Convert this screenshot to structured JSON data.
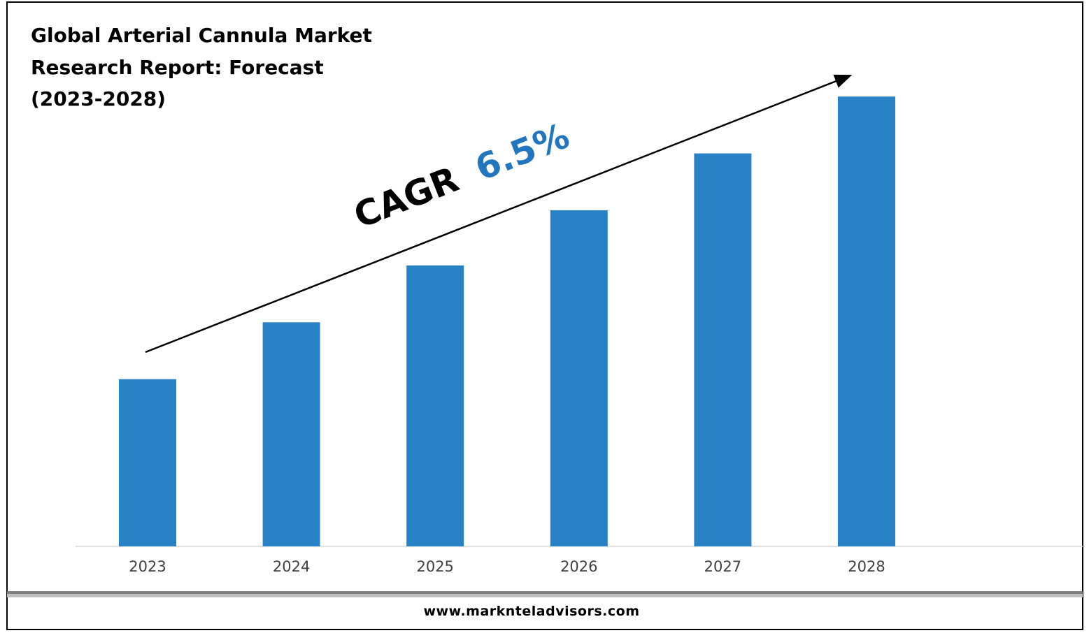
{
  "title_lines": [
    "Global Arterial Cannula Market",
    "Research Report: Forecast",
    "(2023-2028)"
  ],
  "cagr": {
    "label": "CAGR",
    "value": "6.5%"
  },
  "footer": {
    "url": "www.marknteladvisors.com"
  },
  "colors": {
    "bar": "#2982C6",
    "cagr_value": "#2276BE",
    "axis_text": "#404040"
  },
  "chart_data": {
    "type": "bar",
    "categories": [
      "2023",
      "2024",
      "2025",
      "2026",
      "2027",
      "2028"
    ],
    "values": [
      1.0,
      1.34,
      1.68,
      2.01,
      2.35,
      2.69
    ],
    "title": "Global Arterial Cannula Market Research Report: Forecast (2023-2028)",
    "xlabel": "",
    "ylabel": "",
    "ylim": [
      0,
      3.0
    ],
    "grid": false,
    "legend": "none",
    "annotation": "CAGR 6.5%"
  }
}
